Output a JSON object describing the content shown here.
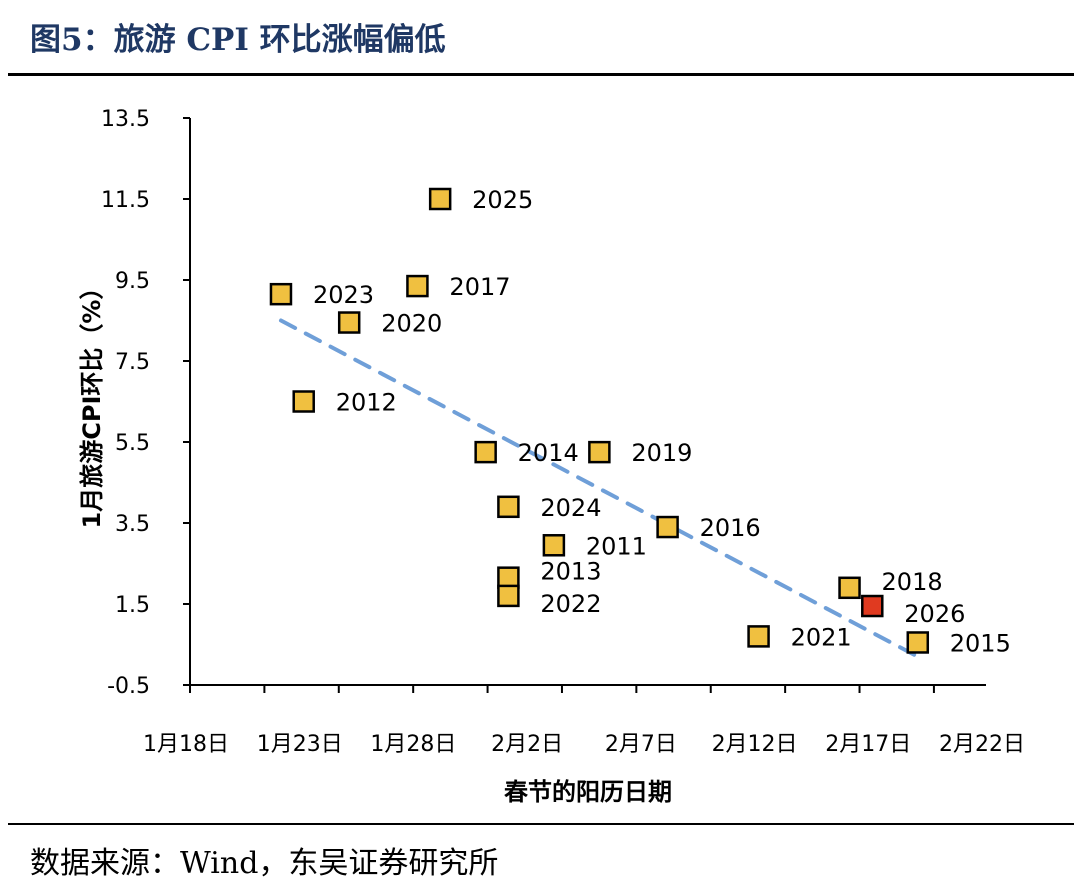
{
  "title": "图5：旅游 CPI 环比涨幅偏低",
  "source": "数据来源：Wind，东吴证券研究所",
  "chart_data": {
    "type": "scatter",
    "xlabel": "春节的阳历日期",
    "ylabel": "1月旅游CPI环比（%）",
    "xlim": [
      "1-18",
      "2-22"
    ],
    "ylim": [
      -0.5,
      13.5
    ],
    "x_ticks": [
      {
        "value": "1-18",
        "label": "1月18日"
      },
      {
        "value": "1-23",
        "label": "1月23日"
      },
      {
        "value": "1-28",
        "label": "1月28日"
      },
      {
        "value": "2-2",
        "label": "2月2日"
      },
      {
        "value": "2-7",
        "label": "2月7日"
      },
      {
        "value": "2-12",
        "label": "2月12日"
      },
      {
        "value": "2-17",
        "label": "2月17日"
      },
      {
        "value": "2-22",
        "label": "2月22日"
      }
    ],
    "y_ticks": [
      "13.5",
      "11.5",
      "9.5",
      "7.5",
      "5.5",
      "3.5",
      "1.5",
      "-0.5"
    ],
    "grid": false,
    "colors": {
      "point": "#f0c040",
      "highlight": "#e03a20",
      "trend": "#6f9fd8"
    },
    "points": [
      {
        "label": "2025",
        "x": "1-29",
        "y": 11.5
      },
      {
        "label": "2023",
        "x": "1-22",
        "y": 9.15
      },
      {
        "label": "2017",
        "x": "1-28",
        "y": 9.35
      },
      {
        "label": "2020",
        "x": "1-25",
        "y": 8.45
      },
      {
        "label": "2012",
        "x": "1-23",
        "y": 6.5
      },
      {
        "label": "2014",
        "x": "1-31",
        "y": 5.25
      },
      {
        "label": "2019",
        "x": "2-5",
        "y": 5.25
      },
      {
        "label": "2024",
        "x": "2-1",
        "y": 3.9
      },
      {
        "label": "2011",
        "x": "2-3",
        "y": 2.95
      },
      {
        "label": "2013",
        "x": "2-1",
        "y": 2.15
      },
      {
        "label": "2022",
        "x": "2-1",
        "y": 1.7
      },
      {
        "label": "2016",
        "x": "2-8",
        "y": 3.4
      },
      {
        "label": "2021",
        "x": "2-12",
        "y": 0.7
      },
      {
        "label": "2018",
        "x": "2-16",
        "y": 1.9
      },
      {
        "label": "2026",
        "x": "2-17",
        "y": 1.45,
        "highlight": true
      },
      {
        "label": "2015",
        "x": "2-19",
        "y": 0.55
      }
    ],
    "trendline": {
      "style": "dashed",
      "start": {
        "x": "1-22",
        "y": 8.5
      },
      "end": {
        "x": "2-19",
        "y": 0.2
      }
    }
  }
}
